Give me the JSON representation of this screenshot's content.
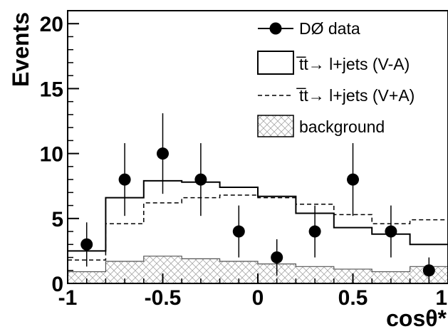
{
  "chart_data": {
    "type": "histogram",
    "xlabel": "cosθ*",
    "ylabel": "Events",
    "xlim": [
      -1,
      1
    ],
    "ylim": [
      0,
      21
    ],
    "x_ticks": [
      "-1",
      "-0.5",
      "0",
      "0.5",
      "1"
    ],
    "x_tick_values": [
      -1,
      -0.5,
      0,
      0.5,
      1
    ],
    "y_ticks": [
      "0",
      "5",
      "10",
      "15",
      "20"
    ],
    "y_tick_values": [
      0,
      5,
      10,
      15,
      20
    ],
    "bin_edges": [
      -1.0,
      -0.8,
      -0.6,
      -0.4,
      -0.2,
      0.0,
      0.2,
      0.4,
      0.6,
      0.8,
      1.0
    ],
    "legend_position": "top-right",
    "series": [
      {
        "name": "DØ data",
        "style": "points-with-errors",
        "x": [
          -0.9,
          -0.7,
          -0.5,
          -0.3,
          -0.1,
          0.1,
          0.3,
          0.5,
          0.7,
          0.9
        ],
        "y": [
          3,
          8,
          10,
          8,
          4,
          2,
          4,
          8,
          4,
          1
        ],
        "err_low": [
          1.7,
          2.8,
          3.1,
          2.8,
          2.0,
          1.4,
          2.0,
          2.8,
          2.0,
          1.0
        ],
        "err_high": [
          1.7,
          2.8,
          3.1,
          2.8,
          2.0,
          1.4,
          2.0,
          2.8,
          2.0,
          1.0
        ]
      },
      {
        "name": "t̅t→ l+jets (V-A)",
        "style": "solid-step",
        "values": [
          2.5,
          6.6,
          7.9,
          7.8,
          7.4,
          6.7,
          5.4,
          4.3,
          3.8,
          3.0
        ]
      },
      {
        "name": "t̅t→ l+jets (V+A)",
        "style": "dashed-step",
        "values": [
          1.8,
          4.6,
          6.2,
          6.6,
          6.8,
          6.6,
          6.1,
          5.3,
          4.6,
          4.9
        ]
      },
      {
        "name": "background",
        "style": "hatched-filled-step",
        "values": [
          0.9,
          1.7,
          2.1,
          1.9,
          1.7,
          1.5,
          1.3,
          1.1,
          0.9,
          1.3
        ]
      }
    ]
  },
  "colors": {
    "ink": "#000000",
    "hatch": "#a8a8a8",
    "background": "#ffffff"
  }
}
